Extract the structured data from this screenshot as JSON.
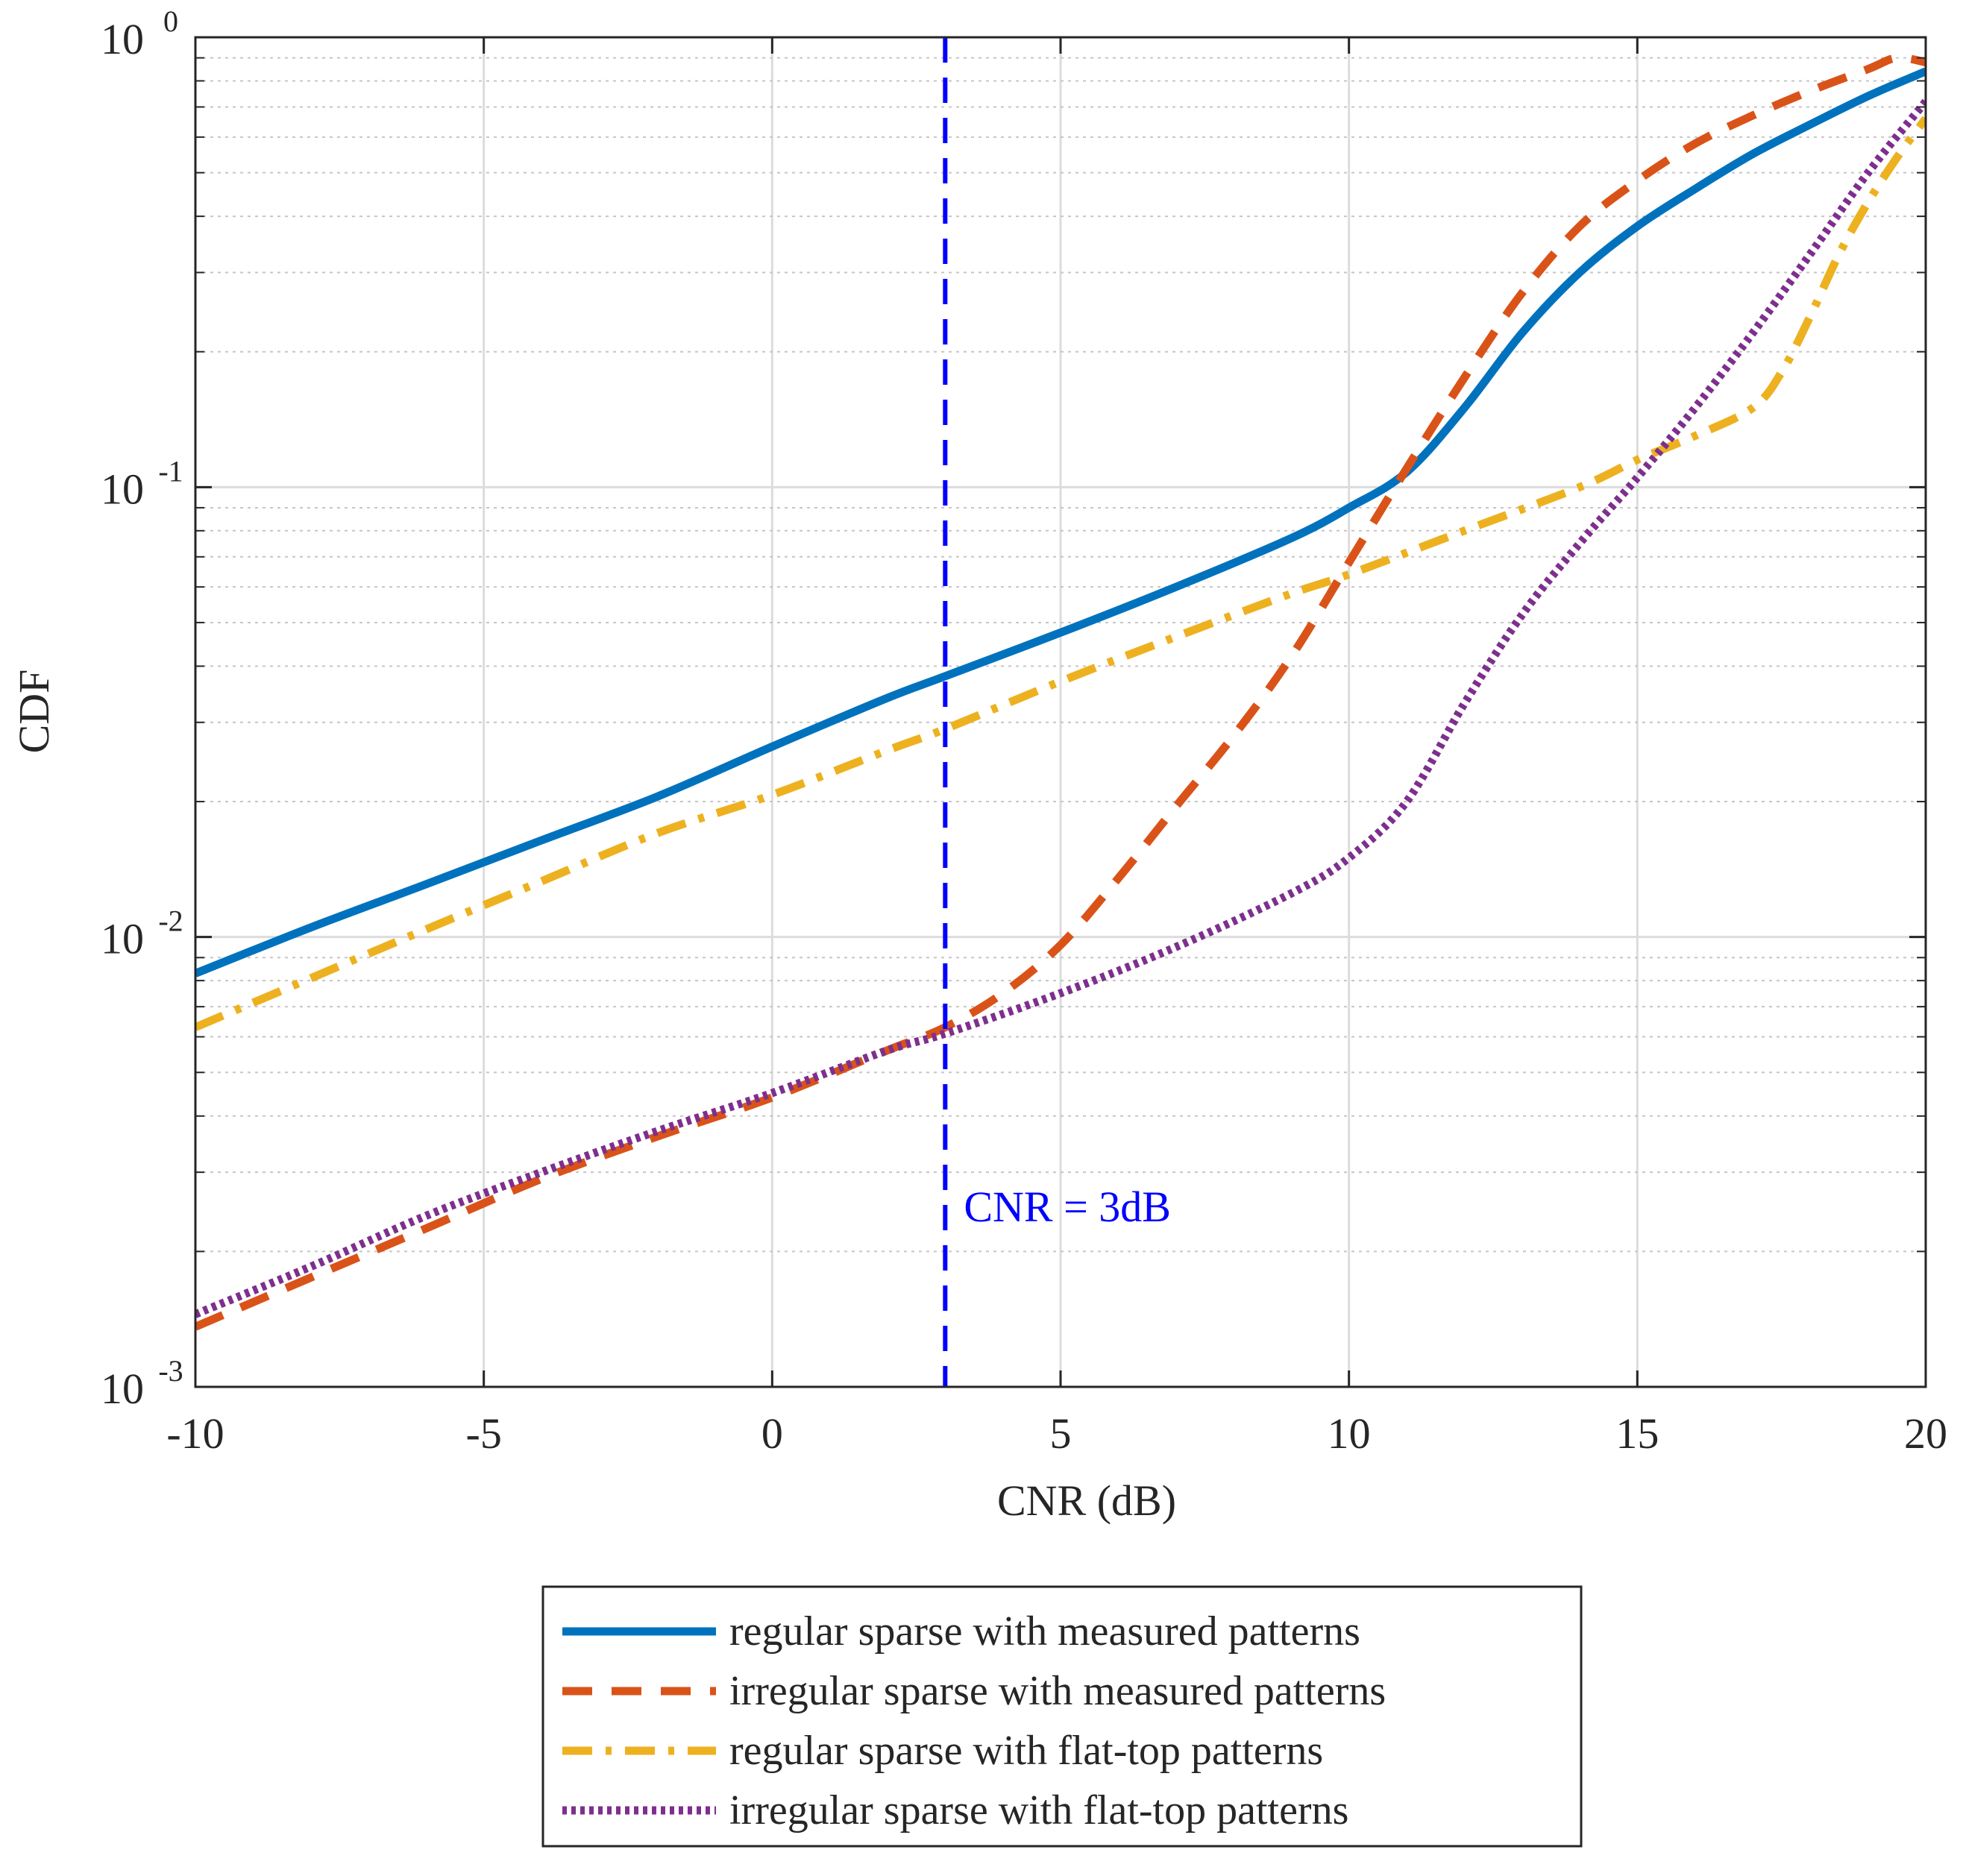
{
  "chart_data": {
    "type": "line",
    "xlabel": "CNR (dB)",
    "ylabel": "CDF",
    "xlim": [
      -10,
      20
    ],
    "ylim": [
      0.001,
      1
    ],
    "yscale": "log",
    "grid": true,
    "x_ticks": [
      {
        "value": -10,
        "label": "-10"
      },
      {
        "value": -5,
        "label": "-5"
      },
      {
        "value": 0,
        "label": "0"
      },
      {
        "value": 5,
        "label": "5"
      },
      {
        "value": 10,
        "label": "10"
      },
      {
        "value": 15,
        "label": "15"
      },
      {
        "value": 20,
        "label": "20"
      }
    ],
    "y_ticks": [
      {
        "value": 0.001,
        "base": "10",
        "exp": "-3"
      },
      {
        "value": 0.01,
        "base": "10",
        "exp": "-2"
      },
      {
        "value": 0.1,
        "base": "10",
        "exp": "-1"
      },
      {
        "value": 1,
        "base": "10",
        "exp": "0"
      }
    ],
    "legend_position": "below",
    "series": [
      {
        "name": "regular sparse with measured patterns",
        "color": "#0072BD",
        "style": "solid",
        "x": [
          -10,
          -8,
          -6,
          -4,
          -2,
          0,
          2,
          3,
          5,
          7,
          9,
          10,
          11,
          12,
          13,
          14,
          15,
          16,
          17,
          18,
          19,
          20
        ],
        "y": [
          0.0083,
          0.0105,
          0.0131,
          0.0164,
          0.0205,
          0.0265,
          0.034,
          0.038,
          0.0475,
          0.06,
          0.077,
          0.09,
          0.108,
          0.15,
          0.22,
          0.3,
          0.38,
          0.46,
          0.55,
          0.64,
          0.74,
          0.84
        ]
      },
      {
        "name": "irregular sparse with measured patterns",
        "color": "#D95319",
        "style": "dashed",
        "x": [
          -10,
          -8,
          -6,
          -4,
          -2,
          0,
          2,
          3,
          4,
          5,
          6,
          7,
          8,
          9,
          10,
          11,
          12,
          13,
          14,
          15,
          16,
          17,
          18,
          19,
          19.5,
          20
        ],
        "y": [
          0.00136,
          0.00175,
          0.00225,
          0.0029,
          0.0036,
          0.0044,
          0.0056,
          0.0063,
          0.0075,
          0.0096,
          0.0135,
          0.0195,
          0.028,
          0.042,
          0.068,
          0.11,
          0.175,
          0.27,
          0.38,
          0.48,
          0.58,
          0.67,
          0.76,
          0.85,
          0.9,
          0.88
        ]
      },
      {
        "name": "regular sparse with flat-top patterns",
        "color": "#EDB120",
        "style": "dashdot",
        "x": [
          -10,
          -8,
          -6,
          -4,
          -2,
          0,
          2,
          3,
          5,
          7,
          9,
          10,
          12,
          14,
          15,
          16,
          17,
          17.5,
          18,
          18.5,
          19,
          19.5,
          20
        ],
        "y": [
          0.0063,
          0.0081,
          0.0104,
          0.0133,
          0.017,
          0.0207,
          0.026,
          0.029,
          0.037,
          0.0465,
          0.058,
          0.064,
          0.08,
          0.1,
          0.115,
          0.13,
          0.15,
          0.18,
          0.24,
          0.33,
          0.43,
          0.54,
          0.66
        ]
      },
      {
        "name": "irregular sparse with flat-top patterns",
        "color": "#7E2F8E",
        "style": "dotted",
        "x": [
          -10,
          -8,
          -6,
          -4,
          -2,
          0,
          2,
          3,
          5,
          7,
          9,
          10,
          11,
          12,
          13,
          14,
          15,
          16,
          17,
          18,
          19,
          20
        ],
        "y": [
          0.00145,
          0.00185,
          0.0024,
          0.003,
          0.0037,
          0.0045,
          0.0056,
          0.0061,
          0.0075,
          0.0095,
          0.0125,
          0.015,
          0.02,
          0.033,
          0.052,
          0.075,
          0.105,
          0.15,
          0.22,
          0.33,
          0.5,
          0.72
        ]
      }
    ],
    "annotations": [
      {
        "type": "vline",
        "x": 3,
        "color": "#0000FF",
        "style": "dashed",
        "text": "CNR = 3dB"
      }
    ]
  }
}
